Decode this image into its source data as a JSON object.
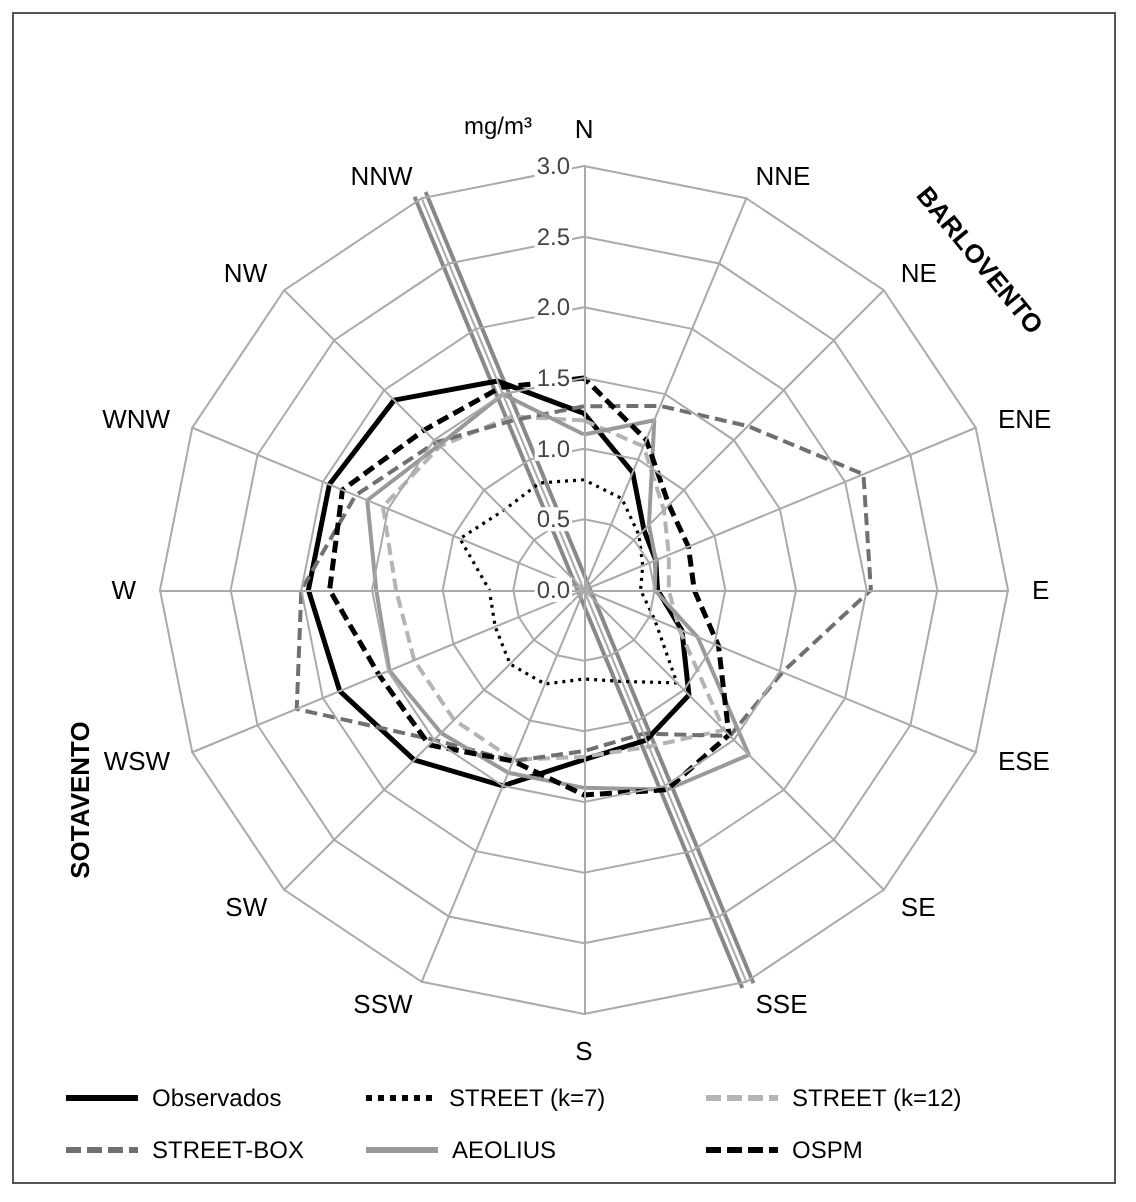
{
  "chart_data": {
    "type": "radar",
    "ylabel": "mg/m³",
    "categories": [
      "N",
      "NNE",
      "NE",
      "ENE",
      "E",
      "ESE",
      "SE",
      "SSE",
      "S",
      "SSW",
      "SW",
      "WSW",
      "W",
      "WNW",
      "NW",
      "NNW"
    ],
    "ylim": [
      0,
      3
    ],
    "yticks": [
      {
        "value": 0,
        "label": "0.0"
      },
      {
        "value": 0.5,
        "label": "0.5"
      },
      {
        "value": 1,
        "label": "1.0"
      },
      {
        "value": 1.5,
        "label": "1.5"
      },
      {
        "value": 2,
        "label": "2.0"
      },
      {
        "value": 2.5,
        "label": "2.5"
      },
      {
        "value": 3,
        "label": "3.0"
      }
    ],
    "grid": true,
    "legend": "bottom",
    "marker": "none",
    "annotations": [
      "BARLOVENTO",
      "SOTAVENTO"
    ],
    "series": [
      {
        "name": "Observados",
        "color": "#000000",
        "line_style": "solid",
        "values": [
          1.25,
          0.9,
          0.6,
          0.55,
          0.52,
          0.75,
          1.05,
          1.15,
          1.2,
          1.5,
          1.7,
          1.87,
          1.95,
          1.95,
          1.9,
          1.6
        ]
      },
      {
        "name": "STREET (k=7)",
        "color": "#000000",
        "line_style": "dotted",
        "values": [
          0.78,
          0.7,
          0.55,
          0.45,
          0.4,
          0.54,
          0.93,
          0.7,
          0.63,
          0.72,
          0.74,
          0.68,
          0.67,
          0.95,
          0.8,
          0.82
        ]
      },
      {
        "name": "STREET (k=12)",
        "color": "#b4b4b4",
        "line_style": "dashed",
        "values": [
          1.2,
          1.1,
          0.8,
          0.65,
          0.6,
          0.73,
          1.4,
          1.2,
          1.18,
          1.3,
          1.3,
          1.3,
          1.33,
          1.54,
          1.44,
          1.33
        ]
      },
      {
        "name": "STREET-BOX",
        "color": "#707070",
        "line_style": "dashed",
        "values": [
          1.3,
          1.41,
          1.64,
          2.14,
          2.03,
          1.52,
          1.46,
          1.1,
          1.14,
          1.31,
          1.5,
          2.2,
          2.0,
          1.75,
          1.48,
          1.3
        ]
      },
      {
        "name": "AEOLIUS",
        "color": "#999999",
        "line_style": "solid",
        "values": [
          1.1,
          1.3,
          0.65,
          0.55,
          0.5,
          0.87,
          1.65,
          1.53,
          1.4,
          1.4,
          1.43,
          1.49,
          1.47,
          1.66,
          1.45,
          1.5
        ]
      },
      {
        "name": "OSPM",
        "color": "#000000",
        "line_style": "dashed",
        "values": [
          1.5,
          1.15,
          0.85,
          0.8,
          0.78,
          1.03,
          1.45,
          1.53,
          1.45,
          1.31,
          1.55,
          1.57,
          1.8,
          1.85,
          1.6,
          1.55
        ]
      }
    ]
  }
}
